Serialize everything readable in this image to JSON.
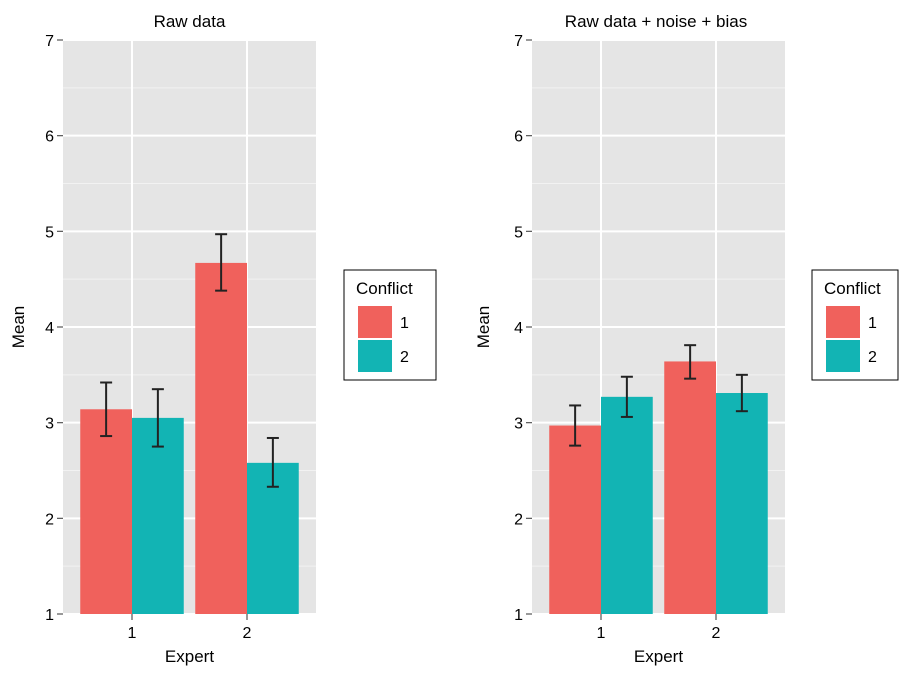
{
  "chart_data": [
    {
      "type": "bar",
      "title": "Raw data",
      "xlabel": "Expert",
      "ylabel": "Mean",
      "categories": [
        "1",
        "2"
      ],
      "ylim": [
        1,
        7
      ],
      "yticks": [
        "1",
        "2",
        "3",
        "4",
        "5",
        "6",
        "7"
      ],
      "grid": true,
      "legend": {
        "title": "Conflict",
        "position": "right"
      },
      "series": [
        {
          "name": "1",
          "color": "#F0615C",
          "values": [
            3.14,
            4.67
          ],
          "err_low": [
            2.86,
            4.38
          ],
          "err_high": [
            3.42,
            4.97
          ]
        },
        {
          "name": "2",
          "color": "#12B4B4",
          "values": [
            3.05,
            2.58
          ],
          "err_low": [
            2.75,
            2.33
          ],
          "err_high": [
            3.35,
            2.84
          ]
        }
      ]
    },
    {
      "type": "bar",
      "title": "Raw data + noise + bias",
      "xlabel": "Expert",
      "ylabel": "Mean",
      "categories": [
        "1",
        "2"
      ],
      "ylim": [
        1,
        7
      ],
      "yticks": [
        "1",
        "2",
        "3",
        "4",
        "5",
        "6",
        "7"
      ],
      "grid": true,
      "legend": {
        "title": "Conflict",
        "position": "right"
      },
      "series": [
        {
          "name": "1",
          "color": "#F0615C",
          "values": [
            2.97,
            3.64
          ],
          "err_low": [
            2.76,
            3.46
          ],
          "err_high": [
            3.18,
            3.81
          ]
        },
        {
          "name": "2",
          "color": "#12B4B4",
          "values": [
            3.27,
            3.31
          ],
          "err_low": [
            3.06,
            3.12
          ],
          "err_high": [
            3.48,
            3.5
          ]
        }
      ]
    }
  ],
  "colors": {
    "panel_background": "#E5E5E5",
    "gridline": "#FFFFFF",
    "error_bar": "#222222"
  }
}
